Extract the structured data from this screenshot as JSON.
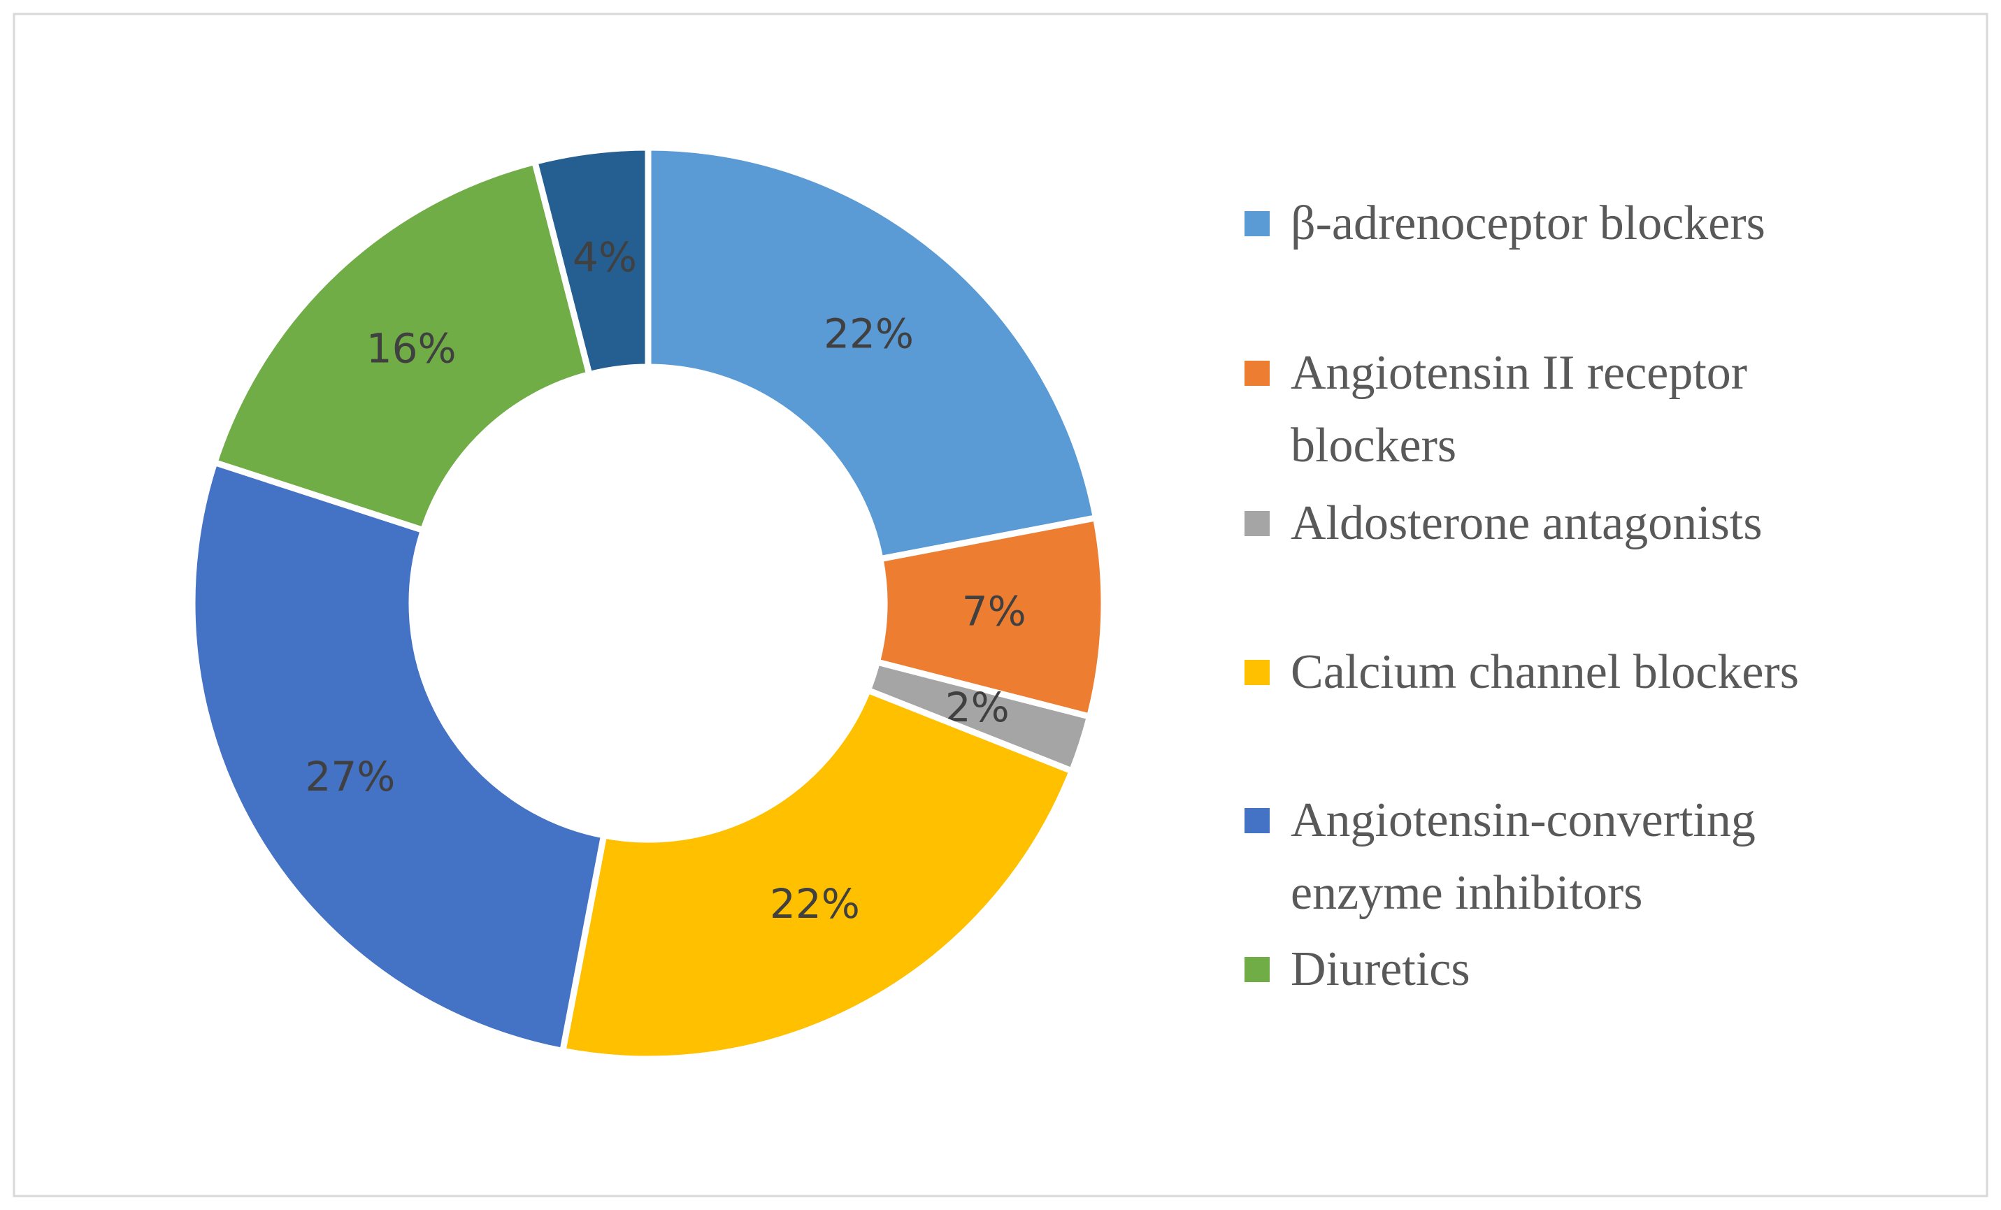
{
  "chart_data": {
    "type": "donut",
    "categories": [
      "β-adrenoceptor blockers",
      "Angiotensin II receptor blockers",
      "Aldosterone antagonists",
      "Calcium channel blockers",
      "Angiotensin-converting enzyme inhibitors",
      "Diuretics",
      null
    ],
    "values": [
      22,
      7,
      2,
      22,
      27,
      16,
      4
    ],
    "value_labels": [
      "22%",
      "7%",
      "2%",
      "22%",
      "27%",
      "16%",
      "4%"
    ],
    "colors": [
      "#5b9bd5",
      "#ed7d31",
      "#a5a5a5",
      "#ffc000",
      "#4472c4",
      "#70ad47",
      "#255e91"
    ],
    "legend": "right"
  }
}
